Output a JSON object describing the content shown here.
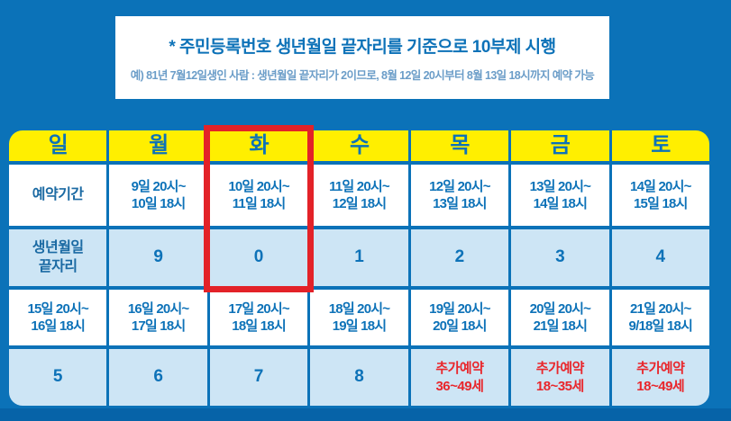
{
  "notice": {
    "title": "* 주민등록번호 생년월일 끝자리를 기준으로 10부제 시행",
    "example": "예) 81년 7월12일생인 사람 : 생년월일 끝자리가 2이므로, 8월 12일 20시부터 8월 13일 18시까지 예약 가능"
  },
  "colors": {
    "background_blue": "#0b72b8",
    "bottom_strip_blue": "#0663a8",
    "header_yellow": "#ffef00",
    "light_blue_row": "#cde5f5",
    "text_blue": "#0d72b8",
    "extra_reservation_red": "#e9262b",
    "highlight_border_red": "#e32228"
  },
  "table": {
    "highlighted_day": "화",
    "rows": [
      {
        "name": "day-header",
        "cells": [
          "일",
          "월",
          "화",
          "수",
          "목",
          "금",
          "토"
        ]
      },
      {
        "name": "week1-period",
        "label_cell": "예약기간",
        "cells": [
          "예약기간",
          "9일 20시~\n10일 18시",
          "10일 20시~\n11일 18시",
          "11일 20시~\n12일 18시",
          "12일 20시~\n13일 18시",
          "13일 20시~\n14일 18시",
          "14일 20시~\n15일 18시"
        ]
      },
      {
        "name": "week1-digit",
        "label_cell": "생년월일 끝자리",
        "cells": [
          "생년월일\n끝자리",
          "9",
          "0",
          "1",
          "2",
          "3",
          "4"
        ]
      },
      {
        "name": "week2-period",
        "cells": [
          "15일 20시~\n16일 18시",
          "16일 20시~\n17일 18시",
          "17일 20시~\n18일 18시",
          "18일 20시~\n19일 18시",
          "19일 20시~\n20일 18시",
          "20일 20시~\n21일 18시",
          "21일 20시~\n9/18일 18시"
        ]
      },
      {
        "name": "week2-digit",
        "cells": [
          "5",
          "6",
          "7",
          "8",
          "추가예약\n36~49세",
          "추가예약\n18~35세",
          "추가예약\n18~49세"
        ]
      }
    ]
  }
}
